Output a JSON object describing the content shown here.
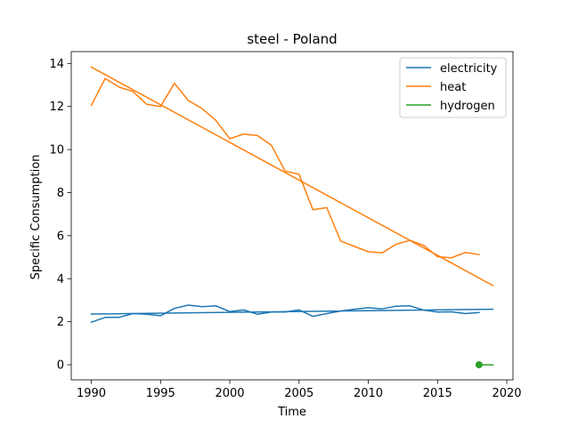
{
  "chart_data": {
    "type": "line",
    "title": "steel - Poland",
    "xlabel": "Time",
    "ylabel": "Specific Consumption",
    "xlim": [
      1988.55,
      2020.45
    ],
    "ylim": [
      -0.7,
      14.55
    ],
    "xticks": [
      1990,
      1995,
      2000,
      2005,
      2010,
      2015,
      2020
    ],
    "yticks": [
      0,
      2,
      4,
      6,
      8,
      10,
      12,
      14
    ],
    "grid": false,
    "legend_position": "top-right",
    "series": [
      {
        "name": "electricity",
        "color": "#1f77b4",
        "x": [
          1990,
          1991,
          1992,
          1993,
          1994,
          1995,
          1996,
          1997,
          1998,
          1999,
          2000,
          2001,
          2002,
          2003,
          2004,
          2005,
          2006,
          2007,
          2008,
          2009,
          2010,
          2011,
          2012,
          2013,
          2014,
          2015,
          2016,
          2017,
          2018
        ],
        "values": [
          1.98,
          2.2,
          2.2,
          2.38,
          2.35,
          2.28,
          2.62,
          2.77,
          2.7,
          2.74,
          2.47,
          2.55,
          2.35,
          2.45,
          2.45,
          2.55,
          2.25,
          2.38,
          2.5,
          2.58,
          2.65,
          2.6,
          2.72,
          2.74,
          2.54,
          2.45,
          2.46,
          2.38,
          2.43
        ]
      },
      {
        "name": "heat",
        "color": "#ff7f0e",
        "x": [
          1990,
          1991,
          1992,
          1993,
          1994,
          1995,
          1996,
          1997,
          1998,
          1999,
          2000,
          2001,
          2002,
          2003,
          2004,
          2005,
          2006,
          2007,
          2008,
          2009,
          2010,
          2011,
          2012,
          2013,
          2014,
          2015,
          2016,
          2017,
          2018
        ],
        "values": [
          12.05,
          13.3,
          12.9,
          12.7,
          12.1,
          12.0,
          13.08,
          12.28,
          11.9,
          11.35,
          10.5,
          10.72,
          10.65,
          10.2,
          9.0,
          8.85,
          7.2,
          7.3,
          5.75,
          5.5,
          5.25,
          5.2,
          5.6,
          5.78,
          5.55,
          5.02,
          4.97,
          5.22,
          5.12
        ]
      },
      {
        "name": "electricity",
        "color": "#1f77b4",
        "x": [
          1990,
          2019
        ],
        "values": [
          2.36,
          2.58
        ]
      },
      {
        "name": "heat",
        "color": "#ff7f0e",
        "x": [
          1990,
          2019
        ],
        "values": [
          13.83,
          3.68
        ]
      },
      {
        "name": "hydrogen",
        "color": "#2ca02c",
        "x": [
          2018,
          2019
        ],
        "values": [
          0.0,
          0.0
        ],
        "marker_at_first": true
      }
    ],
    "legend": [
      {
        "label": "electricity",
        "color": "#1f77b4"
      },
      {
        "label": "heat",
        "color": "#ff7f0e"
      },
      {
        "label": "hydrogen",
        "color": "#2ca02c"
      }
    ]
  }
}
